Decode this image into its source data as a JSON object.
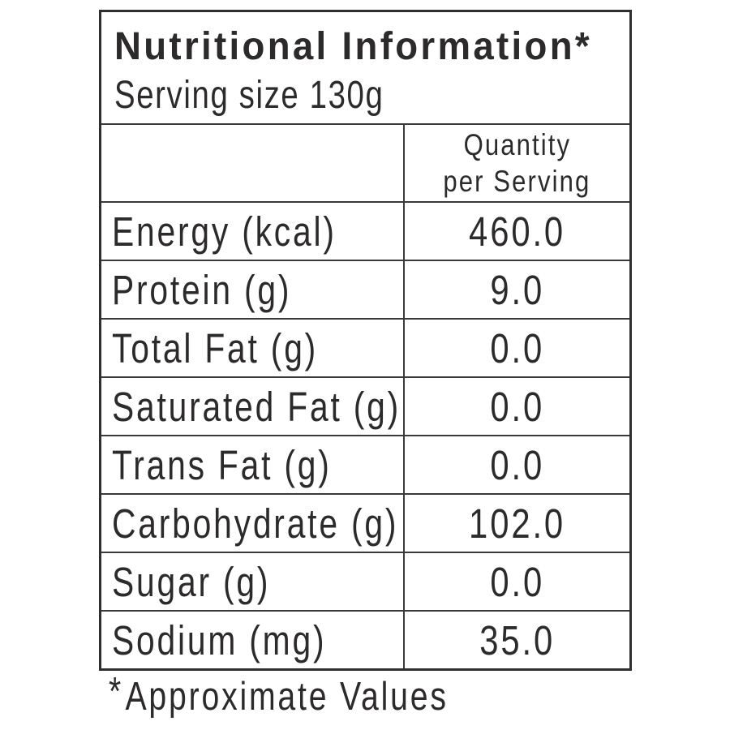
{
  "label": {
    "title": "Nutritional Information*",
    "serving_size": "Serving size 130g",
    "quantity_header": {
      "line1": "Quantity",
      "line2": "per Serving"
    },
    "rows": [
      {
        "name": "Energy (kcal)",
        "value": "460.0"
      },
      {
        "name": "Protein (g)",
        "value": "9.0"
      },
      {
        "name": "Total Fat (g)",
        "value": "0.0"
      },
      {
        "name": "Saturated Fat (g)",
        "value": "0.0"
      },
      {
        "name": "Trans Fat (g)",
        "value": "0.0"
      },
      {
        "name": "Carbohydrate (g)",
        "value": "102.0"
      },
      {
        "name": "Sugar (g)",
        "value": "0.0"
      },
      {
        "name": "Sodium (mg)",
        "value": "35.0"
      }
    ],
    "footnote": {
      "marker": "*",
      "text": "Approximate Values"
    }
  },
  "colors": {
    "background": "#ffffff",
    "text": "#2d2a2b",
    "border_outer": "#2f2f2f",
    "border_inner": "#3a3a3a"
  }
}
